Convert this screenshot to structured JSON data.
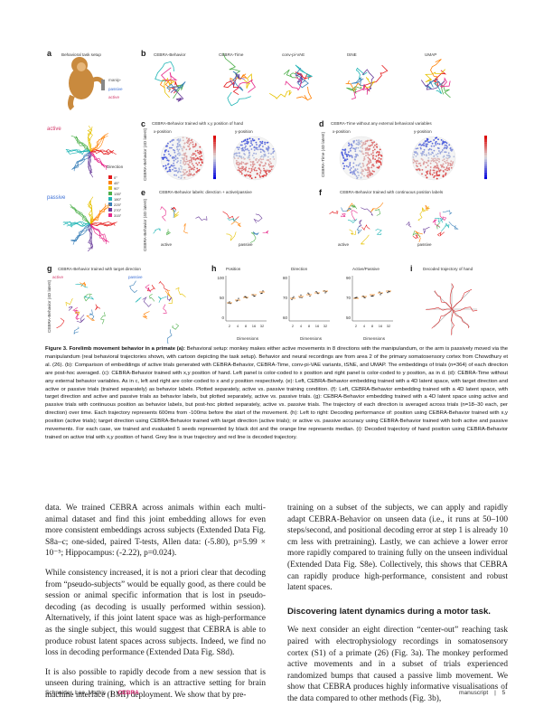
{
  "figure": {
    "panels": {
      "a": {
        "label": "a",
        "title": "Behavioral task setup",
        "side_labels": [
          "manip-",
          "passive",
          "active"
        ],
        "row_labels": [
          "active",
          "passive"
        ],
        "legend_title": "Direction",
        "legend_items": [
          "0°",
          "45°",
          "90°",
          "135°",
          "180°",
          "225°",
          "270°",
          "315°"
        ]
      },
      "b": {
        "label": "b",
        "titles": [
          "CEBRA-Behavior",
          "CEBRA-Time",
          "conv-pi-VAE",
          "tSNE",
          "UMAP"
        ]
      },
      "c": {
        "label": "c",
        "title": "CEBRA-Behavior trained with x,y position of hand",
        "sub": [
          "x-position",
          "y-position"
        ],
        "ylabel": "CEBRA-Behavior (4D latent)"
      },
      "d": {
        "label": "d",
        "title": "CEBRA-Time without any external behavioral variables",
        "sub": [
          "x-position",
          "y-position"
        ],
        "ylabel": "CEBRA-Time (4D latent)"
      },
      "e": {
        "label": "e",
        "title": "CEBRA-Behavior labels: direction + active/passive",
        "sub": [
          "active",
          "passive"
        ],
        "ylabel": "CEBRA-Behavior (4D latent)"
      },
      "f": {
        "label": "f",
        "title": "CEBRA-Behavior trained with continuous position labels",
        "sub": [
          "active",
          "passive"
        ]
      },
      "g": {
        "label": "g",
        "title": "CEBRA-Behavior trained with target direction",
        "sub": [
          "active",
          "passive"
        ],
        "ylabel": "CEBRA-Behavior (4D latent)"
      },
      "h": {
        "label": "h",
        "sub": [
          "Position",
          "Direction",
          "Active/Passive"
        ],
        "xlabel": "Dimensions",
        "yticks1": [
          "100",
          "50",
          "0"
        ],
        "yticks2": [
          "80",
          "70",
          "60"
        ],
        "yticks3": [
          "90",
          "70",
          "50"
        ],
        "xticks": [
          "2",
          "4",
          "8",
          "16",
          "32"
        ]
      },
      "i": {
        "label": "i",
        "title": "Decoded trajectory of hand"
      }
    }
  },
  "caption": {
    "head": "Figure 3. Forelimb movement behavior in a primate (a):",
    "body": "Behavioral setup: monkey makes either active movements in 8 directions with the manipulandum, or the arm is passively moved via the manipulandum (real behavioral trajectories shown, with cartoon depicting the task setup). Behavior and neural recordings are from area 2 of the primary somatosensory cortex from Chowdhury et al. (26). (b): Comparison of embeddings of active trials generated with CEBRA-Behavior, CEBRA-Time, conv-pi-VAE variants, tSNE, and UMAP. The embeddings of trials (n=364) of each direction are post-hoc averaged. (c): CEBRA-Behavior trained with x,y position of hand. Left panel is color-coded to x position and right panel is color-coded to y position, as in d. (d): CEBRA-Time without any external behavior variables. As in c, left and right are color-coded to x and y position respectively. (e): Left, CEBRA-Behavior embedding trained with a 4D latent space, with target direction and active or passive trials (trained separately) as behavior labels. Plotted separately, active vs. passive training condition. (f): Left, CEBRA-Behavior embedding trained with a 4D latent space, with target direction and active and passive trials as behavior labels, but plotted separately, active vs. passive trials. (g): CEBRA-Behavior embedding trained with a 4D latent space using active and passive trials with continuous position as behavior labels, but post-hoc plotted separately, active vs. passive trials. The trajectory of each direction is averaged across trials (n=18–30 each, per direction) over time. Each trajectory represents 600ms from -100ms before the start of the movement. (h): Left to right: Decoding performance of: position using CEBRA-Behavior trained with x,y position (active trials); target direction using CEBRA-Behavior trained with target direction (active trials); or active vs. passive accuracy using CEBRA-Behavior trained with both active and passive movements. For each case, we trained and evaluated 5 seeds represented by black dot and the orange line represents median. (i): Decoded trajectory of hand position using CEBRA-Behavior trained on active trial with x,y position of hand. Grey line is true trajectory and red line is decoded trajectory."
  },
  "left_column": {
    "p1": "data. We trained CEBRA across animals within each multi-animal dataset and find this joint embedding allows for even more consistent embeddings across subjects (Extended Data Fig. S8a–c; one-sided, paired T-tests, Allen data: (-5.80), p=5.99 × 10⁻⁵; Hippocampus: (-2.22), p=0.024).",
    "p2": "While consistency increased, it is not a priori clear that decoding from “pseudo-subjects” would be equally good, as there could be session or animal specific information that is lost in pseudo-decoding (as decoding is usually performed within session). Alternatively, if this joint latent space was as high-performance as the single subject, this would suggest that CEBRA is able to produce robust latent spaces across subjects. Indeed, we find no loss in decoding performance (Extended Data Fig. S8d).",
    "p3": "It is also possible to rapidly decode from a new session that is unseen during training, which is an attractive setting for brain machine interface (BMI) deployment. We show that by pre-"
  },
  "right_column": {
    "p1": "training on a subset of the subjects, we can apply and rapidly adapt CEBRA-Behavior on unseen data (i.e., it runs at 50–100 steps/second, and positional decoding error at step 1 is already 10 cm less with pretraining). Lastly, we can achieve a lower error more rapidly compared to training fully on the unseen individual (Extended Data Fig. S8e). Collectively, this shows that CEBRA can rapidly produce high-performance, consistent and robust latent spaces.",
    "heading": "Discovering latent dynamics during a motor task.",
    "p2": "We next consider an eight direction “center-out” reaching task paired with electrophysiology recordings in somatosensory cortex (S1) of a primate (26) (Fig. 3a). The monkey performed active movements and in a subset of trials experienced randomized bumps that caused a passive limb movement. We show that CEBRA produces highly informative visualisations of the data compared to other methods (Fig. 3b),"
  },
  "footer": {
    "authors": "Schneider, Lee, Mathis",
    "sep": "|",
    "brand": "CEBRA",
    "kind": "manuscript",
    "page": "5"
  },
  "colors": {
    "brand": "#d6256f",
    "cite": "#2257b8",
    "active": "#d33a6b",
    "passive": "#3b6fd6"
  }
}
